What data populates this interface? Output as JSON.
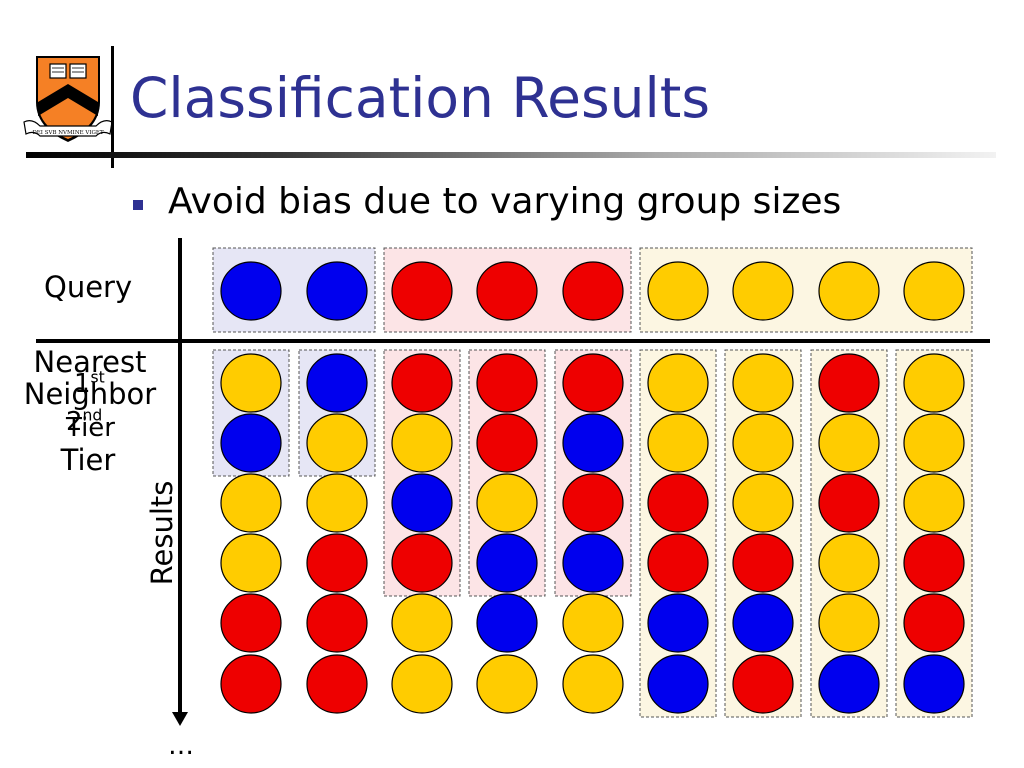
{
  "title": "Classification Results",
  "bullet": "Avoid bias due to varying group sizes",
  "labels": {
    "query": "Query",
    "nearest_neighbor": "Nearest\nNeighbor",
    "tier1_num": "1",
    "tier1_sup": "st",
    "tier2_num": "2",
    "tier2_sup": "nd",
    "tier_word": "Tier",
    "tier_word2": "Tier",
    "results": "Results",
    "ellipsis": "…"
  },
  "logo": {
    "banner_text": "DEI SVB NVMINE VIGET",
    "colors": {
      "orange": "#f58025",
      "black": "#000000"
    }
  },
  "colors": {
    "blue": "#0000ee",
    "red": "#ee0000",
    "yellow": "#ffcc00",
    "title": "#2e3192",
    "bg_blue": "#e6e6f5",
    "bg_red": "#fce4e6",
    "bg_yellow": "#fcf6e2"
  },
  "query": {
    "groups": [
      {
        "color": "blue",
        "items": [
          "blue",
          "blue"
        ]
      },
      {
        "color": "red",
        "items": [
          "red",
          "red",
          "red"
        ]
      },
      {
        "color": "yellow",
        "items": [
          "yellow",
          "yellow",
          "yellow",
          "yellow"
        ]
      }
    ]
  },
  "results": {
    "columns": [
      {
        "group": "blue",
        "tier_rows": 2,
        "items": [
          "yellow",
          "blue",
          "yellow",
          "yellow",
          "red",
          "red"
        ]
      },
      {
        "group": "blue",
        "tier_rows": 2,
        "items": [
          "blue",
          "yellow",
          "yellow",
          "red",
          "red",
          "red"
        ]
      },
      {
        "group": "red",
        "tier_rows": 4,
        "items": [
          "red",
          "yellow",
          "blue",
          "red",
          "yellow",
          "yellow"
        ]
      },
      {
        "group": "red",
        "tier_rows": 4,
        "items": [
          "red",
          "red",
          "yellow",
          "blue",
          "blue",
          "yellow"
        ]
      },
      {
        "group": "red",
        "tier_rows": 4,
        "items": [
          "red",
          "blue",
          "red",
          "blue",
          "yellow",
          "yellow"
        ]
      },
      {
        "group": "yellow",
        "tier_rows": 6,
        "items": [
          "yellow",
          "yellow",
          "red",
          "red",
          "blue",
          "blue"
        ]
      },
      {
        "group": "yellow",
        "tier_rows": 6,
        "items": [
          "yellow",
          "yellow",
          "yellow",
          "red",
          "blue",
          "red"
        ]
      },
      {
        "group": "yellow",
        "tier_rows": 6,
        "items": [
          "red",
          "yellow",
          "red",
          "yellow",
          "yellow",
          "blue"
        ]
      },
      {
        "group": "yellow",
        "tier_rows": 6,
        "items": [
          "yellow",
          "yellow",
          "yellow",
          "red",
          "red",
          "blue"
        ]
      }
    ]
  }
}
